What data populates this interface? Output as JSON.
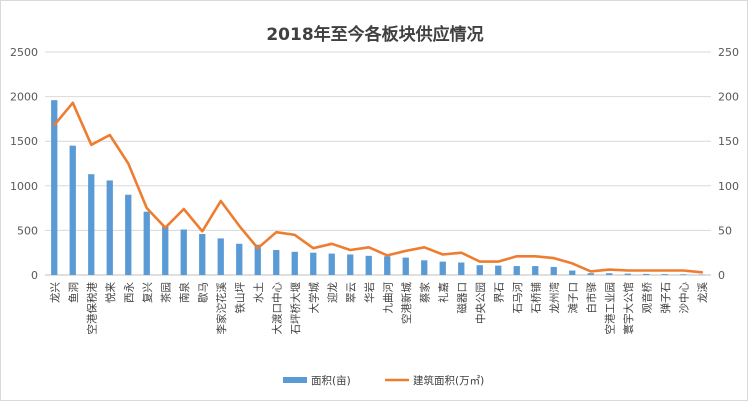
{
  "chart_data": {
    "type": "bar",
    "title": "2018年至今各板块供应情况",
    "categories": [
      "龙兴",
      "鱼洞",
      "空港保税港",
      "悦来",
      "西永",
      "复兴",
      "茶园",
      "南泉",
      "歇马",
      "李家沱花溪",
      "铁山坪",
      "水土",
      "大渡口中心",
      "石坪桥大堰",
      "大学城",
      "迎龙",
      "翠云",
      "华岩",
      "九曲河",
      "空港新城",
      "蔡家",
      "礼嘉",
      "磁器口",
      "中央公园",
      "界石",
      "石马河",
      "石桥铺",
      "龙州湾",
      "滩子口",
      "白市驿",
      "空港工业园",
      "寰宇大公馆",
      "观音桥",
      "弹子石",
      "沙中心",
      "龙溪"
    ],
    "series": [
      {
        "name": "面积(亩)",
        "type": "bar",
        "axis": "left",
        "color": "#5b9bd5",
        "values": [
          1960,
          1450,
          1130,
          1060,
          900,
          710,
          550,
          510,
          460,
          410,
          350,
          340,
          280,
          260,
          250,
          240,
          230,
          215,
          210,
          195,
          165,
          150,
          140,
          110,
          105,
          100,
          100,
          90,
          50,
          20,
          20,
          15,
          12,
          10,
          8,
          5
        ]
      },
      {
        "name": "建筑面积(万㎡)",
        "type": "line",
        "axis": "right",
        "color": "#ed7d31",
        "values": [
          168,
          193,
          146,
          157,
          125,
          75,
          53,
          74,
          49,
          83,
          55,
          30,
          48,
          45,
          30,
          35,
          28,
          31,
          22,
          27,
          31,
          23,
          25,
          15,
          15,
          21,
          21,
          19,
          13,
          4,
          6,
          5,
          5,
          5,
          5,
          3
        ]
      }
    ],
    "y_left": {
      "min": 0,
      "max": 2500,
      "ticks": [
        "0",
        "500",
        "1000",
        "1500",
        "2000",
        "2500"
      ]
    },
    "y_right": {
      "min": 0,
      "max": 250,
      "ticks": [
        "0",
        "50",
        "100",
        "150",
        "200",
        "250"
      ]
    },
    "grid": true,
    "legend": "bottom"
  }
}
